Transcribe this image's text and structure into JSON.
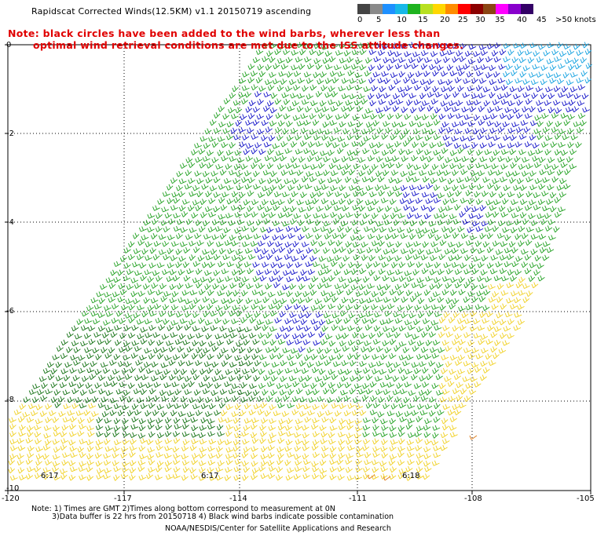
{
  "title": "Rapidscat Corrected Winds(12.5KM) v1.1 20150719 ascending",
  "note_lines": [
    "Note: black circles have been added to the wind barbs, wherever less than",
    "optimal wind retrieval conditions are met due to the ISS attitude changes."
  ],
  "legend": {
    "labels": [
      "0",
      "5",
      "10",
      "15",
      "20",
      "25",
      "30",
      "35",
      "40",
      "45",
      ">50 knots"
    ],
    "colors": [
      "#444444",
      "#8a8a8a",
      "#1e90ff",
      "#18b8e8",
      "#1fb31f",
      "#b8e020",
      "#ffd700",
      "#ff8c00",
      "#ff0000",
      "#8b0000",
      "#8b4513",
      "#ff00ff",
      "#8800cc",
      "#330066"
    ],
    "label_offsets_note": "labels only"
  },
  "map": {
    "lat_ticks": [
      "0",
      "-2",
      "-4",
      "-6",
      "-8",
      "-10"
    ],
    "lon_ticks": [
      "-120",
      "-117",
      "-114",
      "-111",
      "-108",
      "-105"
    ],
    "times": [
      "6:17",
      "6:17",
      "6:18"
    ],
    "colors": {
      "blue": "#1010c8",
      "cyan": "#10a0e0",
      "green": "#20a020",
      "darkgreen": "#107010",
      "yellow": "#f0d020",
      "orange": "#e08020",
      "grid": "#000000"
    }
  },
  "footer": {
    "line1": "Note: 1) Times are GMT 2)Times along bottom correspond to measurement at 0N",
    "line2": "3)Data buffer is 22 hrs from 20150718 4) Black wind barbs indicate possible contamination",
    "line3": "NOAA/NESDIS/Center for Satellite Applications and Research"
  }
}
